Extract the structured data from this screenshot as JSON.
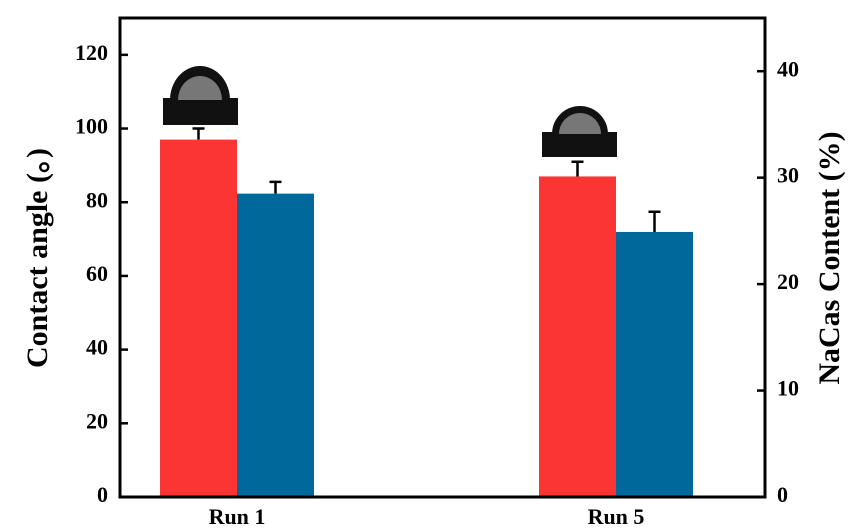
{
  "chart_data": {
    "type": "bar",
    "categories": [
      "Run 1",
      "Run 5"
    ],
    "series": [
      {
        "color": "#fb3434",
        "values": [
          97,
          87
        ],
        "errors": [
          3,
          4
        ]
      },
      {
        "color": "#00689a",
        "values": [
          28.5,
          24.9
        ],
        "errors": [
          1.1,
          1.9
        ],
        "axis": "y2"
      }
    ],
    "ylabel": "Contact angle (。)",
    "y2label": "NaCas Content (%)",
    "ylim": [
      0,
      130
    ],
    "yticks": [
      0,
      20,
      40,
      60,
      80,
      100,
      120
    ],
    "y2lim": [
      0,
      45
    ],
    "y2ticks": [
      0,
      10,
      20,
      30,
      40
    ]
  }
}
